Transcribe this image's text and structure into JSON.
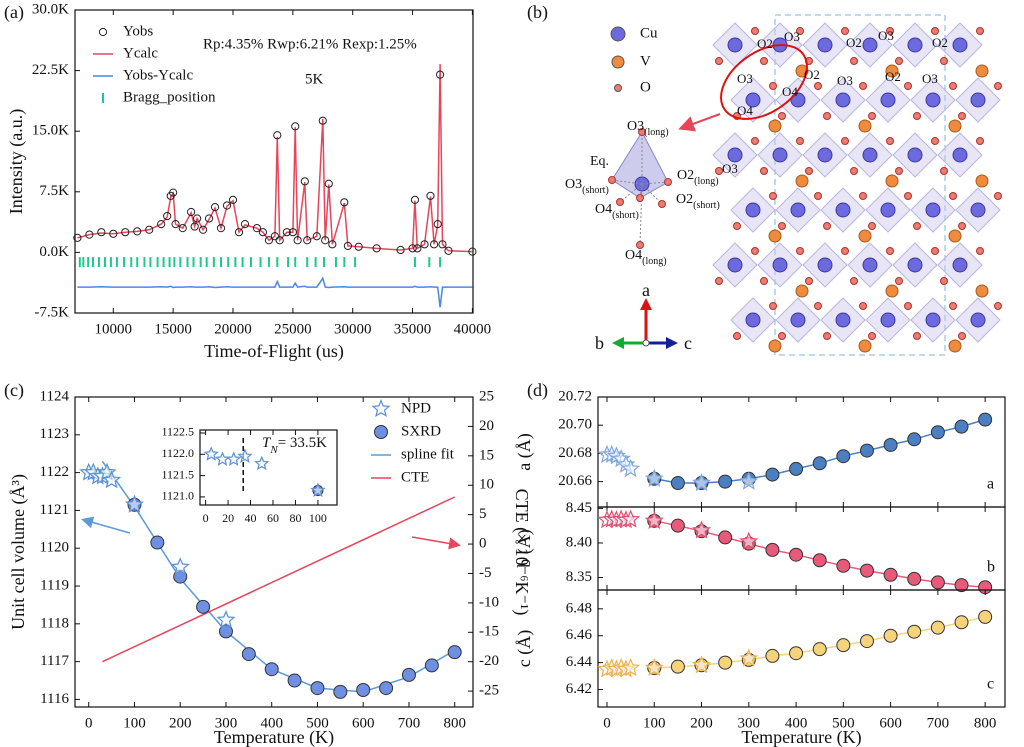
{
  "chart_data": [
    {
      "type": "line",
      "panel_label": "(a)",
      "xlabel": "Time-of-Flight (us)",
      "ylabel": "Intensity (a.u.)",
      "annotations": [
        "Rp:4.35% Rwp:6.21% Rexp:1.25%",
        "5K"
      ],
      "legend": "upper left",
      "xlim": [
        6800,
        40050
      ],
      "xticks": [
        10000,
        15000,
        20000,
        25000,
        30000,
        35000,
        40000
      ],
      "ylim": [
        -7500,
        30000
      ],
      "yticks": [
        {
          "value": -7500,
          "label": "-7.5K"
        },
        {
          "value": 0,
          "label": "0.0K"
        },
        {
          "value": 7500,
          "label": "7.5K"
        },
        {
          "value": 15000,
          "label": "15.0K"
        },
        {
          "value": 22500,
          "label": "22.5K"
        },
        {
          "value": 30000,
          "label": "30.0K"
        }
      ],
      "x": [
        7000,
        8000,
        9000,
        10000,
        11000,
        12000,
        13000,
        14000,
        14500,
        14800,
        15000,
        15200,
        15800,
        16500,
        16800,
        17000,
        17500,
        18000,
        18500,
        19000,
        19500,
        20000,
        20500,
        21000,
        22000,
        22500,
        23000,
        23500,
        23700,
        23900,
        24500,
        25000,
        25200,
        25400,
        26000,
        26200,
        27000,
        27500,
        27700,
        28000,
        28300,
        29300,
        29600,
        30500,
        32000,
        34000,
        35000,
        35200,
        35400,
        36000,
        36500,
        36800,
        37100,
        37300,
        37500,
        38000,
        40000
      ],
      "series": [
        {
          "name": "Yobs",
          "color": "#222222",
          "marker": "circle-open",
          "values": [
            1800,
            2200,
            2500,
            2300,
            2500,
            2600,
            2800,
            3500,
            4500,
            7000,
            7400,
            3500,
            3000,
            5000,
            3200,
            4200,
            2800,
            4200,
            5600,
            3000,
            5800,
            6500,
            2500,
            3500,
            3000,
            2500,
            1500,
            2000,
            14500,
            1500,
            2500,
            2500,
            15600,
            1500,
            8800,
            1500,
            2000,
            16300,
            1500,
            8500,
            1000,
            6200,
            800,
            700,
            500,
            300,
            500,
            6500,
            500,
            1000,
            7000,
            1000,
            3500,
            22000,
            1000,
            200,
            100
          ]
        },
        {
          "name": "Ycalc",
          "color": "#e8445a",
          "line": true,
          "values": [
            1800,
            2200,
            2400,
            2300,
            2500,
            2600,
            2800,
            3500,
            4400,
            6900,
            7300,
            3500,
            3000,
            4900,
            3200,
            4200,
            2800,
            4100,
            5500,
            3000,
            5700,
            6400,
            2500,
            3400,
            3000,
            2500,
            1500,
            2000,
            14300,
            1500,
            2500,
            2500,
            15500,
            1500,
            8700,
            1500,
            2000,
            16500,
            1500,
            8400,
            1000,
            6100,
            800,
            700,
            500,
            300,
            500,
            6400,
            500,
            1000,
            6900,
            1000,
            3400,
            23300,
            1000,
            200,
            100
          ]
        },
        {
          "name": "Yobs-Ycalc",
          "color": "#4a86e8",
          "line": true,
          "values": [
            -4300,
            -4300,
            -4250,
            -4300,
            -4300,
            -4300,
            -4300,
            -4250,
            -4300,
            -4200,
            -4350,
            -4300,
            -4300,
            -4250,
            -4300,
            -4300,
            -4300,
            -4250,
            -4350,
            -4300,
            -4250,
            -4300,
            -4300,
            -4300,
            -4300,
            -4300,
            -4300,
            -4300,
            -3600,
            -4300,
            -4300,
            -4300,
            -3800,
            -4300,
            -4200,
            -4300,
            -4300,
            -3200,
            -4300,
            -4350,
            -4300,
            -4250,
            -4300,
            -4300,
            -4300,
            -4300,
            -4300,
            -4200,
            -4300,
            -4300,
            -4250,
            -4300,
            -4300,
            -6800,
            -4300,
            -4300,
            -4300
          ]
        },
        {
          "name": "Bragg_position",
          "color": "#1dc98a",
          "marker": "tick",
          "x": [
            7200,
            7500,
            7900,
            8300,
            8800,
            9300,
            9800,
            10300,
            10900,
            11500,
            12000,
            12600,
            13100,
            13700,
            14200,
            14700,
            15100,
            15600,
            16200,
            16700,
            17300,
            17800,
            18400,
            19000,
            19600,
            20200,
            20800,
            21500,
            22300,
            23000,
            23700,
            24600,
            25200,
            26200,
            26900,
            27600,
            28600,
            29300,
            30200,
            35200,
            36400,
            37300
          ],
          "values": [
            -1200,
            -1200,
            -1200,
            -1200,
            -1200,
            -1200,
            -1200,
            -1200,
            -1200,
            -1200,
            -1200,
            -1200,
            -1200,
            -1200,
            -1200,
            -1200,
            -1200,
            -1200,
            -1200,
            -1200,
            -1200,
            -1200,
            -1200,
            -1200,
            -1200,
            -1200,
            -1200,
            -1200,
            -1200,
            -1200,
            -1200,
            -1200,
            -1200,
            -1200,
            -1200,
            -1200,
            -1200,
            -1200,
            -1200,
            -1200,
            -1200,
            -1200
          ]
        }
      ]
    },
    {
      "type": "scatter",
      "panel_label": "(c)",
      "xlabel": "Temperature (K)",
      "ylabel": "Unit cell volume (Å³)",
      "y2label": "CTE (× 10⁻⁶K⁻¹)",
      "legend": "upper right",
      "xlim": [
        -30,
        840
      ],
      "xticks": [
        0,
        100,
        200,
        300,
        400,
        500,
        600,
        700,
        800
      ],
      "ylim": [
        1115.8,
        1124
      ],
      "yticks": [
        1116,
        1117,
        1118,
        1119,
        1120,
        1121,
        1122,
        1123,
        1124
      ],
      "y2lim": [
        -27.7,
        25
      ],
      "y2ticks": [
        -25,
        -20,
        -15,
        -10,
        -5,
        0,
        5,
        10,
        15,
        20,
        25
      ],
      "series": [
        {
          "name": "NPD",
          "color": "#5b8fd6",
          "marker": "star",
          "x": [
            0,
            10,
            20,
            30,
            40,
            50,
            100,
            200,
            300
          ],
          "values": [
            1122.0,
            1122.0,
            1121.9,
            1121.9,
            1122.0,
            1121.8,
            1121.15,
            1119.5,
            1118.1
          ]
        },
        {
          "name": "SXRD",
          "color": "#6f8fe3",
          "marker": "circle",
          "x": [
            100,
            150,
            200,
            250,
            300,
            350,
            400,
            450,
            500,
            550,
            600,
            650,
            700,
            750,
            800
          ],
          "values": [
            1121.15,
            1120.15,
            1119.25,
            1118.45,
            1117.8,
            1117.2,
            1116.8,
            1116.5,
            1116.3,
            1116.2,
            1116.25,
            1116.3,
            1116.65,
            1116.9,
            1117.25
          ]
        },
        {
          "name": "spline fit",
          "color": "#5b9bd5",
          "line": true,
          "x": [
            30,
            100,
            200,
            300,
            400,
            500,
            600,
            700,
            800
          ],
          "values": [
            1122.3,
            1121.1,
            1119.2,
            1117.8,
            1116.8,
            1116.3,
            1116.2,
            1116.6,
            1117.3
          ]
        },
        {
          "name": "CTE",
          "color": "#e8445a",
          "line": true,
          "axis": "y2",
          "x": [
            30,
            800
          ],
          "values": [
            -20,
            8
          ]
        }
      ]
    },
    {
      "type": "scatter",
      "xlim": [
        -5,
        117
      ],
      "xticks": [
        0,
        20,
        40,
        60,
        80,
        100
      ],
      "ylim": [
        1120.81,
        1122.57
      ],
      "yticks": [
        {
          "value": 1121.0,
          "label": "1121.0"
        },
        1121.5,
        {
          "value": 1122.0,
          "label": "1122.0"
        },
        1122.5
      ],
      "tn": 33.5,
      "tn_label": [
        "T",
        "N",
        "= 33.5K"
      ],
      "series": [
        {
          "color": "#6f8fe3",
          "marker": "circle",
          "x": [
            100
          ],
          "values": [
            1121.15
          ]
        },
        {
          "color": "#5b8fd6",
          "marker": "star",
          "x": [
            5,
            15,
            25,
            35,
            50,
            100
          ],
          "values": [
            1122.0,
            1121.88,
            1121.88,
            1121.95,
            1121.78,
            1121.15
          ]
        }
      ]
    },
    {
      "type": "scatter",
      "panel_label": "(d)",
      "xlabel": "Temperature (K)",
      "xlim": [
        -19,
        842
      ],
      "xticks": [
        0,
        100,
        200,
        300,
        400,
        500,
        600,
        700,
        800
      ],
      "subplots": [
        {
          "ylabel": "a (Å)",
          "label": "a",
          "ylim": [
            20.642,
            20.72
          ],
          "yticks": [
            20.66,
            20.68,
            {
              "value": 20.7,
              "label": "20.70"
            },
            20.72
          ],
          "series": [
            {
              "color": "#4a7fc1",
              "marker": "circle",
              "line": true,
              "x": [
                100,
                150,
                200,
                250,
                300,
                350,
                400,
                450,
                500,
                550,
                600,
                650,
                700,
                750,
                800
              ],
              "values": [
                20.662,
                20.659,
                20.659,
                20.66,
                20.662,
                20.665,
                20.669,
                20.673,
                20.678,
                20.682,
                20.686,
                20.69,
                20.695,
                20.699,
                20.704
              ]
            },
            {
              "color": "#7fa6dc",
              "marker": "star",
              "x": [
                0,
                10,
                20,
                30,
                40,
                50,
                100,
                200,
                300
              ],
              "values": [
                20.679,
                20.679,
                20.678,
                20.676,
                20.672,
                20.669,
                20.662,
                20.659,
                20.66
              ]
            }
          ]
        },
        {
          "ylabel": "b (Å)",
          "label": "b",
          "ylim": [
            8.332,
            8.452
          ],
          "yticks": [
            8.35,
            {
              "value": 8.4,
              "label": "8.40"
            },
            8.45
          ],
          "series": [
            {
              "color": "#e85a7a",
              "marker": "circle",
              "line": true,
              "x": [
                100,
                150,
                200,
                250,
                300,
                350,
                400,
                450,
                500,
                550,
                600,
                650,
                700,
                750,
                800
              ],
              "values": [
                8.432,
                8.425,
                8.417,
                8.408,
                8.399,
                8.39,
                8.383,
                8.375,
                8.367,
                8.36,
                8.354,
                8.348,
                8.343,
                8.339,
                8.336
              ]
            },
            {
              "color": "#e0506e",
              "marker": "star",
              "x": [
                0,
                10,
                20,
                30,
                40,
                50,
                100,
                200,
                300
              ],
              "values": [
                8.433,
                8.434,
                8.433,
                8.434,
                8.433,
                8.434,
                8.432,
                8.418,
                8.402
              ]
            }
          ]
        },
        {
          "ylabel": "c (Å)",
          "label": "c",
          "ylim": [
            6.407,
            6.494
          ],
          "yticks": [
            6.42,
            6.44,
            6.46,
            6.48
          ],
          "series": [
            {
              "color": "#f5d37a",
              "marker": "circle",
              "line": true,
              "x": [
                100,
                150,
                200,
                250,
                300,
                350,
                400,
                450,
                500,
                550,
                600,
                650,
                700,
                750,
                800
              ],
              "values": [
                6.436,
                6.437,
                6.438,
                6.44,
                6.442,
                6.445,
                6.447,
                6.45,
                6.453,
                6.456,
                6.46,
                6.463,
                6.466,
                6.47,
                6.474
              ]
            },
            {
              "color": "#efb24a",
              "marker": "star",
              "x": [
                0,
                10,
                20,
                30,
                40,
                50,
                100,
                200,
                300
              ],
              "values": [
                6.435,
                6.436,
                6.435,
                6.436,
                6.435,
                6.436,
                6.436,
                6.438,
                6.443
              ]
            }
          ]
        }
      ]
    }
  ],
  "structure": {
    "panel_label": "(b)",
    "legend": [
      "Cu",
      "V",
      "O"
    ],
    "sites": [
      "O2",
      "O3",
      "O2",
      "O3",
      "O2",
      "O3",
      "O2",
      "O3",
      "O2",
      "O3",
      "O4",
      "O4",
      "O3"
    ],
    "cluster": [
      {
        "text": "O3",
        "sub": "(long)"
      },
      {
        "text": "Eq."
      },
      {
        "text": "O3",
        "sub": "(short)"
      },
      {
        "text": "O2",
        "sub": "(long)"
      },
      {
        "text": "O4",
        "sub": "(short)"
      },
      {
        "text": "O2",
        "sub": "(short)"
      },
      {
        "text": "O4",
        "sub": "(long)"
      }
    ],
    "axes": [
      "a",
      "b",
      "c"
    ]
  }
}
